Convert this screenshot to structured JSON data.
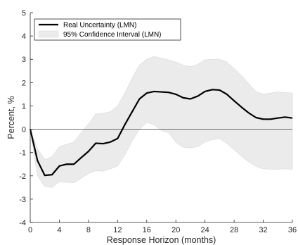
{
  "chart_data": {
    "type": "line",
    "xlabel": "Response Horizon (months)",
    "ylabel": "Percent, %",
    "xlim": [
      0,
      36
    ],
    "ylim": [
      -4,
      5
    ],
    "xticks": [
      0,
      4,
      8,
      12,
      16,
      20,
      24,
      28,
      32,
      36
    ],
    "yticks": [
      -4,
      -3,
      -2,
      -1,
      0,
      1,
      2,
      3,
      4,
      5
    ],
    "grid": false,
    "legend_position": "top-left",
    "zero_line": true,
    "x": [
      0,
      1,
      2,
      3,
      4,
      5,
      6,
      7,
      8,
      9,
      10,
      11,
      12,
      13,
      14,
      15,
      16,
      17,
      18,
      19,
      20,
      21,
      22,
      23,
      24,
      25,
      26,
      27,
      28,
      29,
      30,
      31,
      32,
      33,
      34,
      35,
      36
    ],
    "series": [
      {
        "name": "Real Uncertainty (LMN)",
        "color": "#000000",
        "values": [
          0,
          -1.35,
          -1.98,
          -1.95,
          -1.58,
          -1.5,
          -1.5,
          -1.22,
          -0.95,
          -0.6,
          -0.62,
          -0.55,
          -0.4,
          0.2,
          0.75,
          1.3,
          1.55,
          1.62,
          1.6,
          1.58,
          1.5,
          1.35,
          1.3,
          1.42,
          1.62,
          1.7,
          1.68,
          1.5,
          1.22,
          0.95,
          0.7,
          0.5,
          0.43,
          0.43,
          0.48,
          0.52,
          0.48
        ]
      },
      {
        "name": "95% Confidence Interval (LMN)",
        "color": "#ebebeb",
        "lower": [
          0,
          -2.0,
          -2.45,
          -2.5,
          -2.25,
          -2.28,
          -2.3,
          -2.1,
          -1.9,
          -1.78,
          -1.8,
          -1.7,
          -1.58,
          -1.1,
          -0.5,
          0.0,
          0.3,
          0.2,
          -0.05,
          -0.15,
          -0.55,
          -0.78,
          -0.8,
          -0.75,
          -0.55,
          -0.45,
          -0.4,
          -0.6,
          -0.88,
          -1.15,
          -1.4,
          -1.6,
          -1.7,
          -1.72,
          -1.72,
          -1.7,
          -1.72
        ],
        "upper": [
          0,
          -0.85,
          -1.3,
          -1.18,
          -0.75,
          -0.65,
          -0.55,
          -0.15,
          0.22,
          0.65,
          0.68,
          0.75,
          1.0,
          1.55,
          2.2,
          2.75,
          3.0,
          3.12,
          3.05,
          2.98,
          2.88,
          2.75,
          2.68,
          2.78,
          2.98,
          3.0,
          3.0,
          2.88,
          2.6,
          2.3,
          1.95,
          1.62,
          1.5,
          1.55,
          1.6,
          1.58,
          1.55
        ]
      }
    ]
  },
  "colors": {
    "axis": "#262626",
    "band": "#ebebeb",
    "band_edge": "#d8d8d8",
    "line": "#000000",
    "zero_line": "#555555"
  }
}
